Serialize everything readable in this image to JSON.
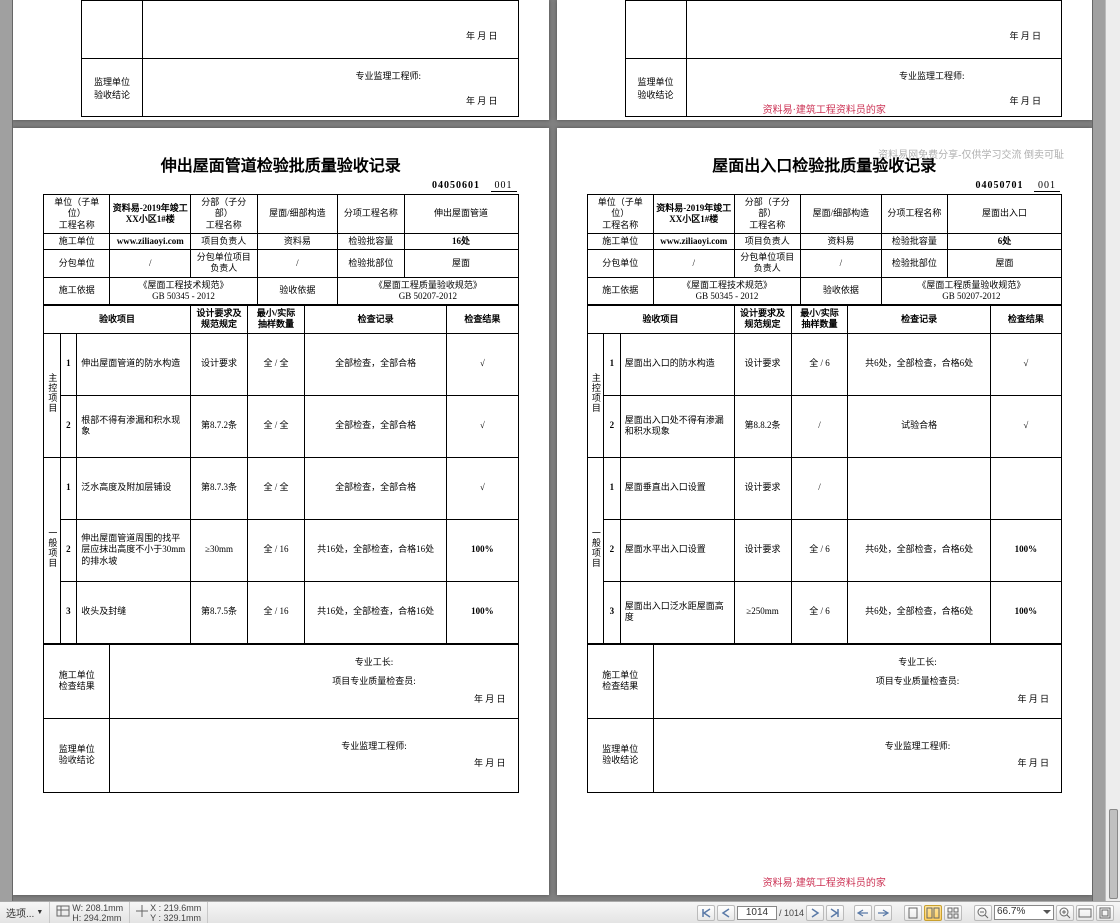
{
  "labels": {
    "supervisor": "监理单位\n验收结论",
    "construction": "施工单位\n检查结果",
    "chief_engineer": "专业监理工程师:",
    "site_engineer": "专业工长:",
    "qc_inspector": "项目专业质量检查员:",
    "date": "年  月  日",
    "wm_top": "资料易网免费分享-仅供学习交流 倒卖可耻",
    "wm_bottom": "资料易·建筑工程资料员的家",
    "unit_name": "单位（子单位）\n工程名称",
    "project_name": "资料易-2019年竣工\nXX小区1#楼",
    "sub_div": "分部（子分部）\n工程名称",
    "sub_div_val": "屋面/细部构造",
    "item_name": "分项工程名称",
    "cons_unit": "施工单位",
    "website": "www.ziliaoyi.com",
    "pm": "项目负责人",
    "pm_val": "资料易",
    "batch_qty": "检验批容量",
    "subcon": "分包单位",
    "subcon_pm": "分包单位项目\n负责人",
    "batch_part": "检验批部位",
    "batch_part_val": "屋面",
    "basis": "施工依据",
    "basis_val": "《屋面工程技术规范》\nGB 50345 - 2012",
    "accept_basis": "验收依据",
    "accept_basis_val": "《屋面工程质量验收规范》\nGB 50207-2012",
    "col_item": "验收项目",
    "col_req": "设计要求及\n规范规定",
    "col_sample": "最小/实际\n抽样数量",
    "col_record": "检查记录",
    "col_result": "检查结果",
    "slash": "/",
    "master": "主控项目",
    "general": "一般项目",
    "design_req": "设计要求",
    "all_all": "全 / 全",
    "full_full": "全 /",
    "mark_ok": "√",
    "hundred": "100%"
  },
  "left": {
    "title": "伸出屋面管道检验批质量验收记录",
    "code": "04050601",
    "code_no": "001",
    "item_val": "伸出屋面管道",
    "qty": "16处",
    "rows_master": [
      {
        "n": "1",
        "name": "伸出屋面管道的防水构造",
        "req": "设计要求",
        "sample": "全 / 全",
        "rec": "全部检查，全部合格",
        "res": "√"
      },
      {
        "n": "2",
        "name": "根部不得有渗漏和积水现象",
        "req": "第8.7.2条",
        "sample": "全 / 全",
        "rec": "全部检查，全部合格",
        "res": "√"
      }
    ],
    "rows_general": [
      {
        "n": "1",
        "name": "泛水高度及附加层铺设",
        "req": "第8.7.3条",
        "sample": "全 / 全",
        "rec": "全部检查，全部合格",
        "res": "√"
      },
      {
        "n": "2",
        "name": "伸出屋面管道周围的找平层应抹出高度不小于30mm的排水坡",
        "req": "≥30mm",
        "sample": "全 / 16",
        "rec": "共16处，全部检查，合格16处",
        "res": "100%"
      },
      {
        "n": "3",
        "name": "收头及封缝",
        "req": "第8.7.5条",
        "sample": "全 / 16",
        "rec": "共16处，全部检查，合格16处",
        "res": "100%"
      }
    ]
  },
  "right": {
    "title": "屋面出入口检验批质量验收记录",
    "code": "04050701",
    "code_no": "001",
    "item_val": "屋面出入口",
    "qty": "6处",
    "rows_master": [
      {
        "n": "1",
        "name": "屋面出入口的防水构造",
        "req": "设计要求",
        "sample": "全 / 6",
        "rec": "共6处，全部检查，合格6处",
        "res": "√"
      },
      {
        "n": "2",
        "name": "屋面出入口处不得有渗漏和积水现象",
        "req": "第8.8.2条",
        "sample": "/",
        "rec": "试验合格",
        "res": "√"
      }
    ],
    "rows_general": [
      {
        "n": "1",
        "name": "屋面垂直出入口设置",
        "req": "设计要求",
        "sample": "/",
        "rec": "",
        "res": ""
      },
      {
        "n": "2",
        "name": "屋面水平出入口设置",
        "req": "设计要求",
        "sample": "全 / 6",
        "rec": "共6处，全部检查，合格6处",
        "res": "100%"
      },
      {
        "n": "3",
        "name": "屋面出入口泛水距屋面高度",
        "req": "≥250mm",
        "sample": "全 / 6",
        "rec": "共6处，全部检查，合格6处",
        "res": "100%"
      }
    ]
  },
  "status": {
    "options": "选项...",
    "w_label": "W:",
    "w_val": "208.1mm",
    "h_label": "H:",
    "h_val": "294.2mm",
    "x_label": "X :",
    "x_val": "219.6mm",
    "y_label": "Y :",
    "y_val": "329.1mm",
    "page_cur": "1014",
    "page_total": "1014",
    "zoom": "66.7%"
  }
}
